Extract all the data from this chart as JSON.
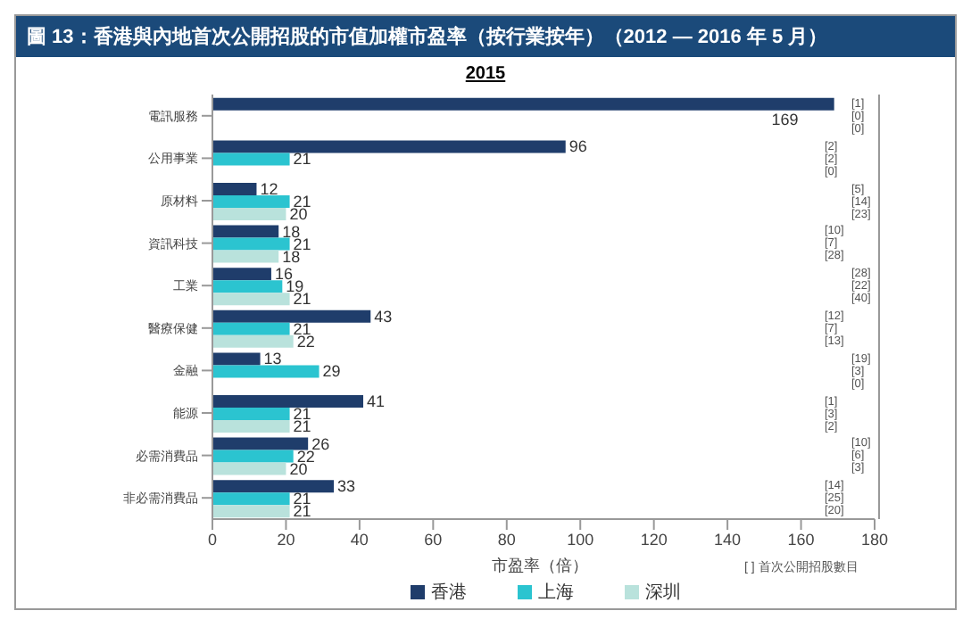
{
  "chart_data": {
    "type": "bar",
    "orientation": "horizontal",
    "title": "圖 13：香港與內地首次公開招股的市值加權市盈率（按行業按年）（2012 — 2016 年 5 月）",
    "subtitle": "2015",
    "xlabel": "市盈率（倍）",
    "categories": [
      "電訊服務",
      "公用事業",
      "原材料",
      "資訊科技",
      "工業",
      "醫療保健",
      "金融",
      "能源",
      "必需消費品",
      "非必需消費品"
    ],
    "series": [
      {
        "name": "香港",
        "color": "#1f3d6b",
        "values": [
          169,
          96,
          12,
          18,
          16,
          43,
          13,
          41,
          26,
          33
        ]
      },
      {
        "name": "上海",
        "color": "#2bc4d0",
        "values": [
          null,
          21,
          21,
          21,
          19,
          21,
          29,
          21,
          22,
          21
        ]
      },
      {
        "name": "深圳",
        "color": "#b9e2dc",
        "values": [
          null,
          null,
          20,
          18,
          21,
          22,
          null,
          21,
          20,
          21
        ]
      }
    ],
    "xlim": [
      0,
      180
    ],
    "xticks": [
      0,
      20,
      40,
      60,
      80,
      100,
      120,
      140,
      160,
      180
    ],
    "data_labels": true,
    "legend": "bottom",
    "grid": false,
    "annotations": [
      "[1]",
      "[0]",
      "[0]",
      "[2]",
      "[2]",
      "[0]",
      "[5]",
      "[14]",
      "[23]",
      "[10]",
      "[7]",
      "[28]",
      "[28]",
      "[22]",
      "[40]",
      "[12]",
      "[7]",
      "[13]",
      "[19]",
      "[3]",
      "[0]",
      "[1]",
      "[3]",
      "[2]",
      "[10]",
      "[6]",
      "[3]",
      "[14]",
      "[25]",
      "[20]",
      "[ ] 首次公開招股數目"
    ]
  }
}
